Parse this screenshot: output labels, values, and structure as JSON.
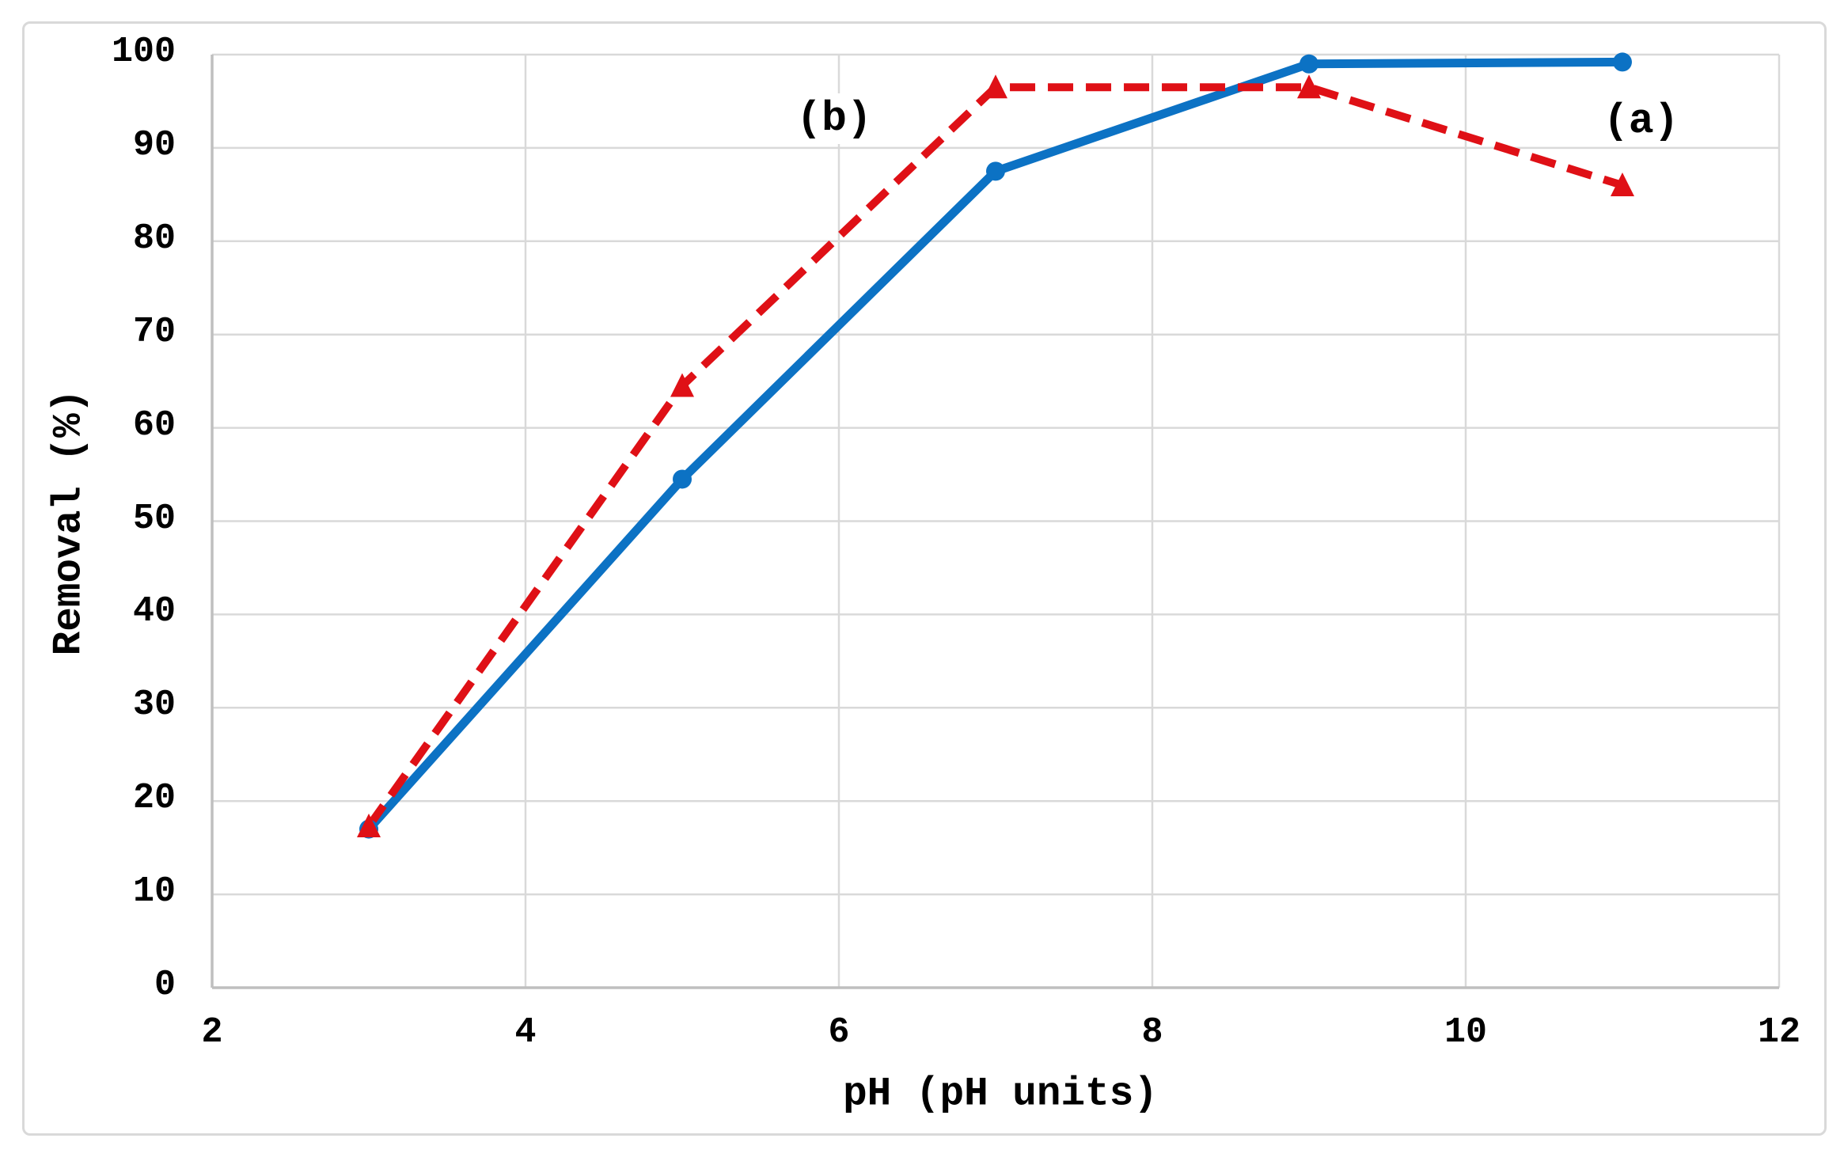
{
  "figure": {
    "background": "#ffffff",
    "border_color": "#d9d9d9"
  },
  "chart_data": {
    "type": "line",
    "title": "",
    "xlabel": "pH (pH units)",
    "ylabel": "Removal (%)",
    "xlim": [
      2,
      12
    ],
    "ylim": [
      0,
      100
    ],
    "xticks": [
      2,
      4,
      6,
      8,
      10,
      12
    ],
    "yticks": [
      0,
      10,
      20,
      30,
      40,
      50,
      60,
      70,
      80,
      90,
      100
    ],
    "grid": true,
    "legend_position": "inline-annotations",
    "colors": {
      "gridline": "#d9d9d9",
      "axis": "#bfbfbf",
      "text": "#000000"
    },
    "x": [
      3,
      5,
      7,
      9,
      11
    ],
    "series": [
      {
        "name": "a",
        "marker": "circle",
        "line_style": "solid",
        "color": "#0c72c4",
        "values": [
          17,
          54.5,
          87.5,
          99,
          99.2
        ],
        "label": {
          "text": "(a)",
          "x": 11.12,
          "y": 92.9
        }
      },
      {
        "name": "b",
        "marker": "triangle",
        "line_style": "dashed",
        "color": "#df1016",
        "values": [
          17.3,
          64.5,
          96.5,
          96.5,
          86
        ],
        "label": {
          "text": "(b)",
          "x": 5.97,
          "y": 93.1
        }
      }
    ]
  }
}
